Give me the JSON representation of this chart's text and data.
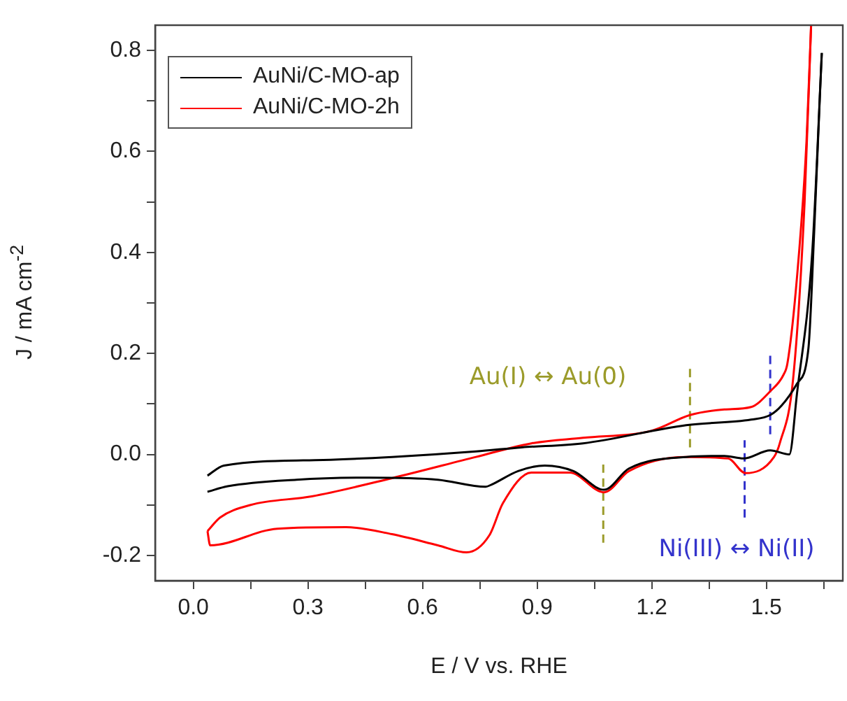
{
  "chart_data": {
    "type": "line",
    "xlabel": "E / V vs. RHE",
    "ylabel": "J / mA cm$^{-2}$",
    "xlim": [
      -0.1,
      1.7
    ],
    "ylim": [
      -0.25,
      0.85
    ],
    "xticks": [
      {
        "value": 0,
        "label": "0.0"
      },
      {
        "value": 0.15,
        "label": null
      },
      0.3,
      {
        "value": 0.45,
        "label": null
      },
      0.6,
      {
        "value": 0.75,
        "label": null
      },
      0.9,
      {
        "value": 1.05,
        "label": null
      },
      1.2,
      {
        "value": 1.35,
        "label": null
      },
      1.5,
      {
        "value": 1.65,
        "label": null
      }
    ],
    "yticks": [
      -0.2,
      {
        "value": -0.1,
        "label": null
      },
      {
        "value": 0,
        "label": "0.0"
      },
      {
        "value": 0.1,
        "label": null
      },
      0.2,
      {
        "value": 0.3,
        "label": null
      },
      0.4,
      {
        "value": 0.5,
        "label": null
      },
      0.6,
      {
        "value": 0.7,
        "label": null
      },
      0.8
    ],
    "grid": false,
    "legend": "top left",
    "line_style": "solid",
    "marker": "none",
    "series": [
      {
        "name": "AuNi/C-MO-ap",
        "color": "#000000",
        "x": [
          0.037,
          0.08,
          0.34,
          0.52,
          0.74,
          0.86,
          1.02,
          1.29,
          1.46,
          1.51,
          1.54,
          1.58,
          1.61,
          1.625,
          1.64,
          1.645
        ],
        "values": [
          -0.042,
          -0.022,
          -0.011,
          -0.005,
          0.006,
          0.014,
          0.022,
          0.058,
          0.069,
          0.078,
          0.097,
          0.14,
          0.21,
          0.44,
          0.71,
          0.795
        ]
      },
      {
        "color": "#000000",
        "x": [
          0.037,
          0.09,
          0.27,
          0.46,
          0.64,
          0.765,
          0.78,
          0.85,
          0.92,
          0.995,
          1.075,
          1.14,
          1.29,
          1.39,
          1.44,
          1.51,
          1.56,
          1.58,
          1.62,
          1.645
        ],
        "values": [
          -0.074,
          -0.063,
          -0.05,
          -0.046,
          -0.05,
          -0.064,
          -0.06,
          -0.033,
          -0.022,
          -0.033,
          -0.07,
          -0.028,
          -0.005,
          -0.003,
          -0.008,
          0.008,
          0.0,
          0.12,
          0.4,
          0.795
        ]
      },
      {
        "name": "AuNi/C-MO-2h",
        "color": "#ff0000",
        "x": [
          0.037,
          0.07,
          0.15,
          0.31,
          0.52,
          0.74,
          0.885,
          1.02,
          1.2,
          1.3,
          1.39,
          1.46,
          1.51,
          1.545,
          1.555,
          1.58,
          1.605,
          1.617
        ],
        "values": [
          -0.152,
          -0.125,
          -0.1,
          -0.083,
          -0.047,
          -0.005,
          0.022,
          0.033,
          0.047,
          0.078,
          0.089,
          0.094,
          0.125,
          0.158,
          0.18,
          0.35,
          0.62,
          0.85
        ]
      },
      {
        "color": "#ff0000",
        "x": [
          0.037,
          0.044,
          0.22,
          0.4,
          0.52,
          0.64,
          0.715,
          0.775,
          0.81,
          0.885,
          0.985,
          1.075,
          1.14,
          1.29,
          1.4,
          1.445,
          1.52,
          1.535,
          1.57,
          1.6,
          1.617
        ],
        "values": [
          -0.152,
          -0.18,
          -0.147,
          -0.144,
          -0.158,
          -0.18,
          -0.194,
          -0.16,
          -0.097,
          -0.036,
          -0.036,
          -0.075,
          -0.033,
          -0.005,
          -0.008,
          -0.037,
          -0.005,
          0.022,
          0.15,
          0.5,
          0.85
        ]
      },
      {
        "type": "line",
        "line_style": "dashed",
        "color": "#9b9b2a",
        "x": [
          1.073,
          1.073
        ],
        "values": [
          -0.175,
          -0.02
        ]
      },
      {
        "type": "line",
        "line_style": "dashed",
        "color": "#9b9b2a",
        "x": [
          1.3,
          1.3
        ],
        "values": [
          0.014,
          0.17
        ]
      },
      {
        "type": "line",
        "line_style": "dashed",
        "color": "#3333cc",
        "x": [
          1.443,
          1.443
        ],
        "values": [
          -0.125,
          0.028
        ]
      },
      {
        "type": "line",
        "line_style": "dashed",
        "color": "#3333cc",
        "x": [
          1.51,
          1.51
        ],
        "values": [
          0.04,
          0.2
        ]
      }
    ],
    "annotations": [
      "Au(I) ↔ Au(0)",
      "Ni(III) ↔ Ni(II)"
    ]
  }
}
